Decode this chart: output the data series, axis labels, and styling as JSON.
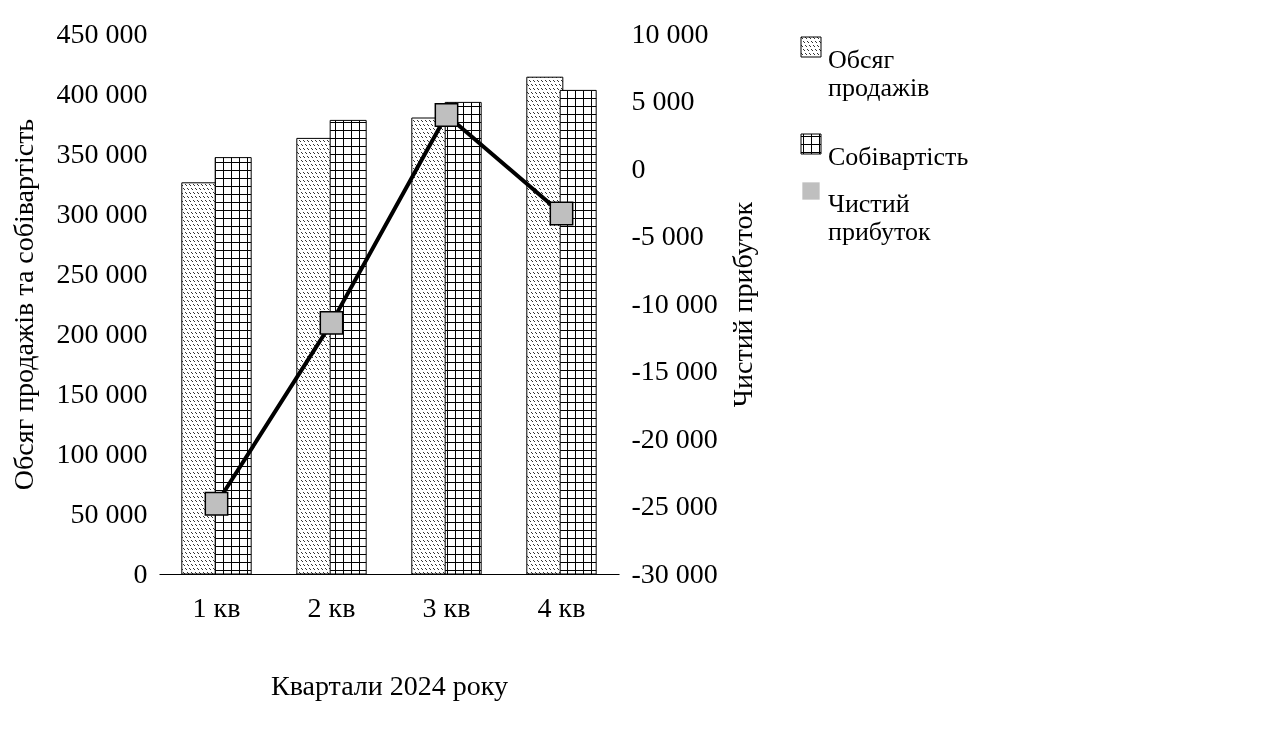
{
  "chart_data": {
    "type": "bar",
    "xlabel": "Квартали 2024 року",
    "ylabel": "Обсяг продажів та собівартість",
    "y2label": "Чистий прибуток",
    "categories": [
      "1 кв",
      "2 кв",
      "3 кв",
      "4 кв"
    ],
    "series": [
      {
        "name": "Обсяг продажів",
        "color": "#000000",
        "values": [
          326000,
          363000,
          380000,
          414000
        ]
      },
      {
        "name": "Собівартість",
        "color": "#000000",
        "values": [
          347000,
          378000,
          393000,
          403000
        ]
      },
      {
        "name": "Чистий прибуток",
        "type": "line",
        "axis": "y2",
        "color": "#000000",
        "marker": "square",
        "values": [
          -24800,
          -11400,
          4000,
          -3300
        ]
      }
    ],
    "ylim": [
      0,
      450000
    ],
    "yticks": [
      0,
      50000,
      100000,
      150000,
      200000,
      250000,
      300000,
      350000,
      400000,
      450000
    ],
    "y2lim": [
      -30000,
      10000
    ],
    "y2ticks": [
      -30000,
      -25000,
      -20000,
      -15000,
      -10000,
      -5000,
      0,
      5000,
      10000
    ],
    "grid": false,
    "legend": "right"
  }
}
